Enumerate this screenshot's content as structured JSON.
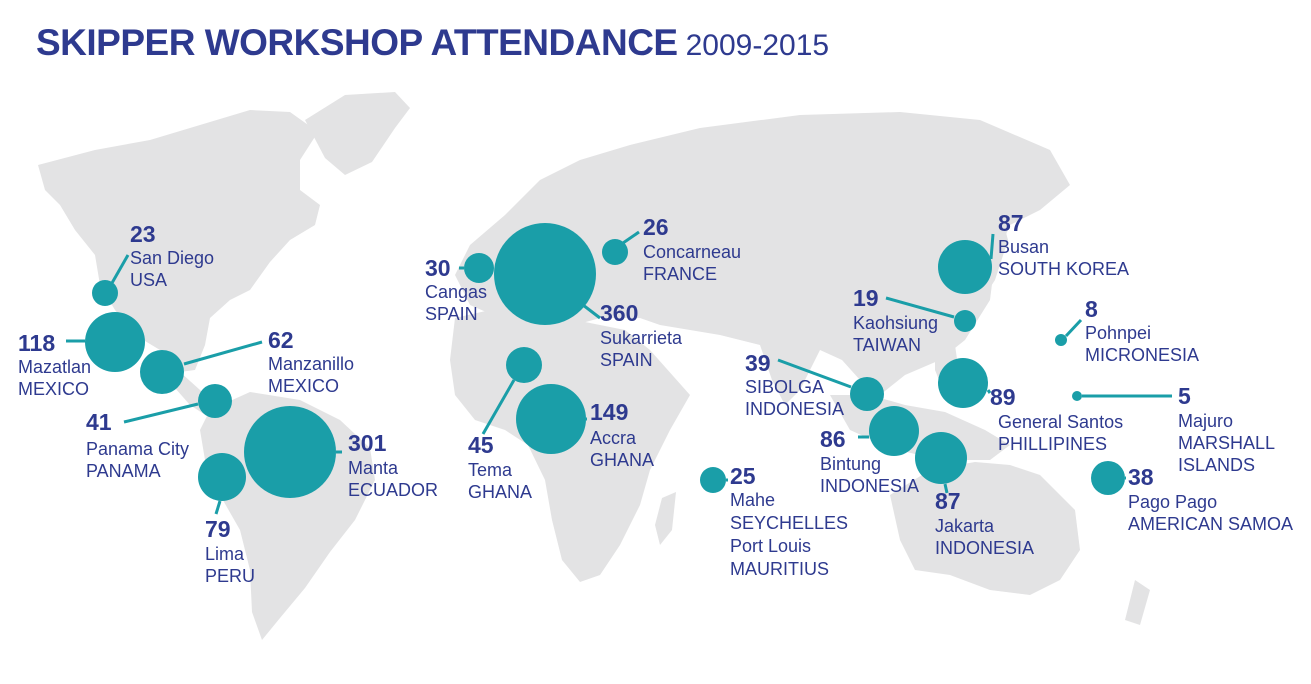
{
  "title": {
    "main": "SKIPPER WORKSHOP ATTENDANCE",
    "years": "2009-2015"
  },
  "colors": {
    "bubble": "#1a9ea8",
    "line": "#1a9ea8",
    "text": "#2e3a8f",
    "land": "#e3e3e4"
  },
  "locations": [
    {
      "id": "san-diego",
      "value": "23",
      "lines": [
        "San Diego",
        "USA"
      ]
    },
    {
      "id": "mazatlan",
      "value": "118",
      "lines": [
        "Mazatlan",
        "MEXICO"
      ]
    },
    {
      "id": "manzanillo",
      "value": "62",
      "lines": [
        "Manzanillo",
        "MEXICO"
      ]
    },
    {
      "id": "panama-city",
      "value": "41",
      "lines": [
        "Panama City",
        "PANAMA"
      ]
    },
    {
      "id": "lima",
      "value": "79",
      "lines": [
        "Lima",
        "PERU"
      ]
    },
    {
      "id": "manta",
      "value": "301",
      "lines": [
        "Manta",
        "ECUADOR"
      ]
    },
    {
      "id": "cangas",
      "value": "30",
      "lines": [
        "Cangas",
        "SPAIN"
      ]
    },
    {
      "id": "sukarrieta",
      "value": "360",
      "lines": [
        "Sukarrieta",
        "SPAIN"
      ]
    },
    {
      "id": "concarneau",
      "value": "26",
      "lines": [
        "Concarneau",
        "FRANCE"
      ]
    },
    {
      "id": "tema",
      "value": "45",
      "lines": [
        "Tema",
        "GHANA"
      ]
    },
    {
      "id": "accra",
      "value": "149",
      "lines": [
        "Accra",
        "GHANA"
      ]
    },
    {
      "id": "mahe",
      "value": "25",
      "lines": [
        "Mahe",
        "SEYCHELLES",
        "Port Louis",
        "MAURITIUS"
      ]
    },
    {
      "id": "sibolga",
      "value": "39",
      "lines": [
        "SIBOLGA",
        "INDONESIA"
      ]
    },
    {
      "id": "bintung",
      "value": "86",
      "lines": [
        "Bintung",
        "INDONESIA"
      ]
    },
    {
      "id": "jakarta",
      "value": "87",
      "lines": [
        "Jakarta",
        "INDONESIA"
      ]
    },
    {
      "id": "kaohsiung",
      "value": "19",
      "lines": [
        "Kaohsiung",
        "TAIWAN"
      ]
    },
    {
      "id": "busan",
      "value": "87",
      "lines": [
        "Busan",
        "SOUTH KOREA"
      ]
    },
    {
      "id": "general-santos",
      "value": "89",
      "lines": [
        "General Santos",
        "PHILLIPINES"
      ]
    },
    {
      "id": "pohnpei",
      "value": "8",
      "lines": [
        "Pohnpei",
        "MICRONESIA"
      ]
    },
    {
      "id": "majuro",
      "value": "5",
      "lines": [
        "Majuro",
        "MARSHALL",
        "ISLANDS"
      ]
    },
    {
      "id": "pago-pago",
      "value": "38",
      "lines": [
        "Pago Pago",
        "AMERICAN SAMOA"
      ]
    }
  ]
}
